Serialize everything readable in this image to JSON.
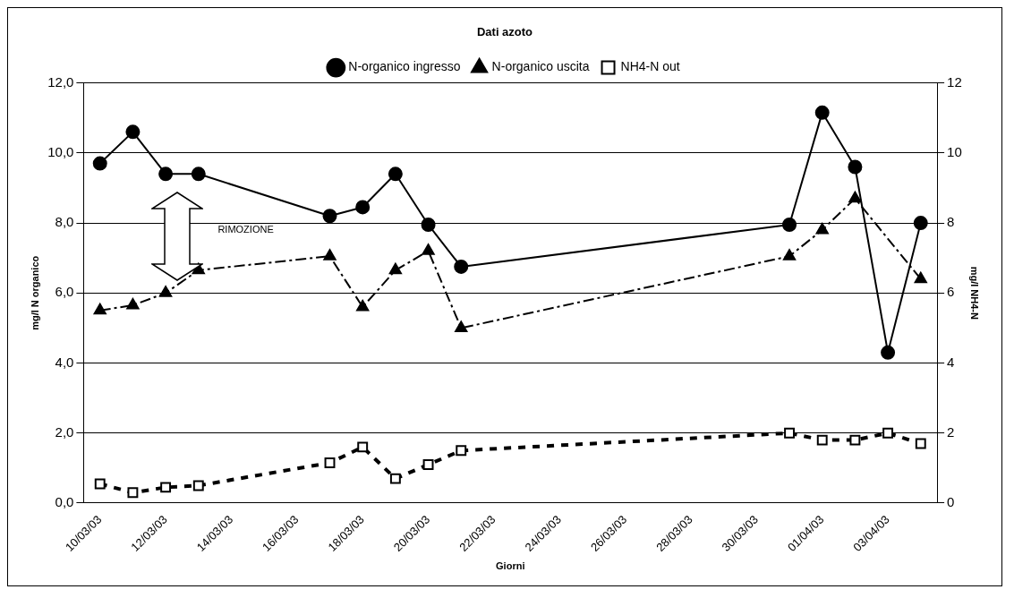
{
  "chart_data": {
    "type": "line",
    "title": "Dati azoto",
    "xlabel": "Giorni",
    "ylabel": "mg/l N organico",
    "y2label": "mg/l NH4-N",
    "annotations": [
      "RIMOZIONE"
    ],
    "x": [
      "--03-10",
      "--03-11",
      "--03-12",
      "--03-13",
      "--03-17",
      "--03-18",
      "--03-19",
      "--03-20",
      "--03-21",
      "--03-31",
      "--04-01",
      "--04-02",
      "--04-03",
      "--04-04"
    ],
    "series": [
      {
        "name": "N-organico ingresso",
        "color": "#000000",
        "values": [
          9.7,
          10.6,
          9.4,
          9.4,
          8.2,
          8.45,
          9.4,
          7.95,
          6.75,
          7.95,
          11.15,
          9.6,
          4.3,
          8.0
        ],
        "marker": "circle",
        "line_style": "solid"
      },
      {
        "name": "N-organico uscita",
        "color": "#000000",
        "values": [
          5.5,
          5.65,
          6.0,
          6.65,
          7.05,
          5.6,
          6.65,
          7.2,
          5.0,
          7.05,
          7.8,
          8.7,
          null,
          6.4
        ],
        "marker": "triangle",
        "line_style": "dashed"
      },
      {
        "name": "NH4-N out",
        "color": "#000000",
        "values": [
          0.55,
          0.3,
          0.45,
          0.5,
          1.15,
          1.6,
          0.7,
          1.1,
          1.5,
          2.0,
          1.8,
          1.8,
          2.0,
          1.7
        ],
        "marker": "square",
        "line_style": "dotted",
        "axis": "y2"
      }
    ],
    "xlim": [
      "--03-09T12:00",
      "--04-04T12:00"
    ],
    "xticks": [
      {
        "value": "--03-10",
        "label": "10/03/03"
      },
      {
        "value": "--03-12",
        "label": "12/03/03"
      },
      {
        "value": "--03-14",
        "label": "14/03/03"
      },
      {
        "value": "--03-16",
        "label": "16/03/03"
      },
      {
        "value": "--03-18",
        "label": "18/03/03"
      },
      {
        "value": "--03-20",
        "label": "20/03/03"
      },
      {
        "value": "--03-22",
        "label": "22/03/03"
      },
      {
        "value": "--03-24",
        "label": "24/03/03"
      },
      {
        "value": "--03-26",
        "label": "26/03/03"
      },
      {
        "value": "--03-28",
        "label": "28/03/03"
      },
      {
        "value": "--03-30",
        "label": "30/03/03"
      },
      {
        "value": "--04-01",
        "label": "01/04/03"
      },
      {
        "value": "--04-03",
        "label": "03/04/03"
      }
    ],
    "ylim": [
      0,
      12
    ],
    "yticks": [
      {
        "value": 0,
        "label": "0,0"
      },
      {
        "value": 2,
        "label": "2,0"
      },
      {
        "value": 4,
        "label": "4,0"
      },
      {
        "value": 6,
        "label": "6,0"
      },
      {
        "value": 8,
        "label": "8,0"
      },
      {
        "value": 10,
        "label": "10,0"
      },
      {
        "value": 12,
        "label": "12,0"
      }
    ],
    "y2lim": [
      0,
      12
    ],
    "y2ticks": [
      0,
      2,
      4,
      6,
      8,
      10,
      12
    ],
    "grid": "y",
    "legend": "top"
  }
}
